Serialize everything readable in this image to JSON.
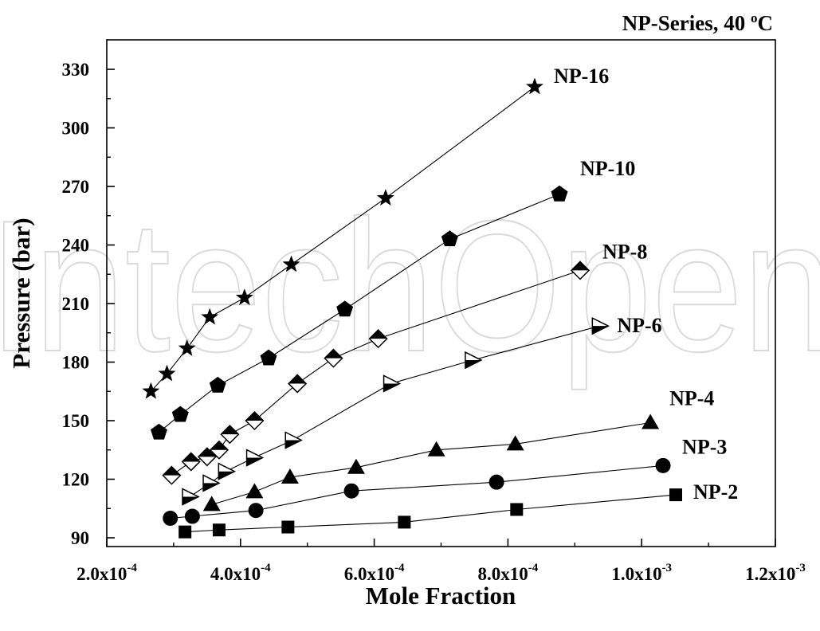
{
  "chart_data": {
    "type": "scatter",
    "title": "NP-Series, 40 °C",
    "title_parts": {
      "prefix": "NP-Series, 40 ",
      "superscript": "o",
      "suffix": "C"
    },
    "xlabel": "Mole Fraction",
    "ylabel": "Pressure (bar)",
    "xlim": [
      0.0002,
      0.0012
    ],
    "ylim": [
      85,
      337
    ],
    "x_ticks": [
      0.0002,
      0.0004,
      0.0006,
      0.0008,
      0.001,
      0.0012
    ],
    "x_tick_labels": [
      {
        "mant": "2.0x10",
        "exp": "-4"
      },
      {
        "mant": "4.0x10",
        "exp": "-4"
      },
      {
        "mant": "6.0x10",
        "exp": "-4"
      },
      {
        "mant": "8.0x10",
        "exp": "-4"
      },
      {
        "mant": "1.0x10",
        "exp": "-3"
      },
      {
        "mant": "1.2x10",
        "exp": "-3"
      }
    ],
    "y_ticks": [
      90,
      120,
      150,
      180,
      210,
      240,
      270,
      300,
      330
    ],
    "y_tick_labels": [
      "90",
      "120",
      "150",
      "180",
      "210",
      "240",
      "270",
      "300",
      "330"
    ],
    "grid": false,
    "series": [
      {
        "name": "NP-2",
        "marker": "square",
        "x": [
          0.000317,
          0.000368,
          0.000471,
          0.000645,
          0.000813,
          0.001051
        ],
        "y": [
          93,
          94,
          95.5,
          98,
          104.5,
          112
        ]
      },
      {
        "name": "NP-3",
        "marker": "circle",
        "x": [
          0.000295,
          0.000328,
          0.000423,
          0.000566,
          0.000783,
          0.001032
        ],
        "y": [
          100,
          101,
          104,
          114,
          118.5,
          127
        ]
      },
      {
        "name": "NP-4",
        "marker": "triangle-up",
        "x": [
          0.000357,
          0.000421,
          0.000474,
          0.000573,
          0.000693,
          0.000811,
          0.001013
        ],
        "y": [
          107,
          113.5,
          121,
          126,
          135,
          138,
          149
        ]
      },
      {
        "name": "NP-6",
        "marker": "triangle-right-half",
        "x": [
          0.000324,
          0.000355,
          0.000378,
          0.00042,
          0.000478,
          0.000625,
          0.000747,
          0.000937
        ],
        "y": [
          111,
          118,
          124,
          131,
          140,
          169,
          181,
          198.5
        ]
      },
      {
        "name": "NP-8",
        "marker": "diamond-half",
        "x": [
          0.000297,
          0.000326,
          0.00035,
          0.000368,
          0.000384,
          0.000421,
          0.000485,
          0.000539,
          0.000606,
          0.000908
        ],
        "y": [
          122,
          129,
          131.5,
          135,
          143,
          150,
          169,
          182,
          192,
          227
        ]
      },
      {
        "name": "NP-10",
        "marker": "pentagon",
        "x": [
          0.000278,
          0.00031,
          0.000366,
          0.000442,
          0.000556,
          0.000713,
          0.000877
        ],
        "y": [
          144,
          153,
          168,
          182,
          207,
          243,
          266
        ]
      },
      {
        "name": "NP-16",
        "marker": "star",
        "x": [
          0.000266,
          0.00029,
          0.00032,
          0.000354,
          0.000406,
          0.000476,
          0.000617,
          0.00084
        ],
        "y": [
          165,
          174,
          187,
          203,
          213,
          230,
          264,
          321
        ]
      }
    ],
    "watermark": "IntechOpen"
  }
}
